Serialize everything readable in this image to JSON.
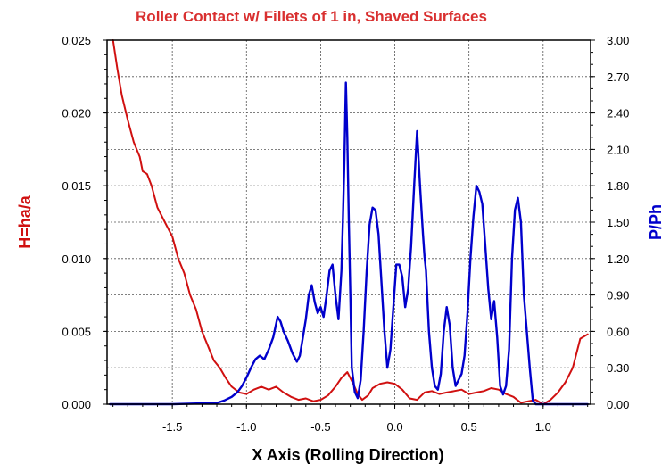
{
  "chart_data": {
    "type": "line",
    "title": "Roller Contact w/ Fillets of 1 in, Shaved Surfaces",
    "xlabel": "X Axis (Rolling Direction)",
    "ylabel_left": "H=ha/a",
    "ylabel_right": "P/Ph",
    "xlim": [
      -1.94,
      1.32
    ],
    "ylim_left": [
      0,
      0.025
    ],
    "ylim_right": [
      0,
      3.0
    ],
    "grid": true,
    "colors": {
      "left": "#d01010",
      "right": "#0000cc",
      "title": "#d93030"
    },
    "x_ticks": [
      {
        "v": -1.5,
        "label": "-1.5"
      },
      {
        "v": -1.0,
        "label": "-1.0"
      },
      {
        "v": -0.5,
        "label": "-0.5"
      },
      {
        "v": 0.0,
        "label": "0.0"
      },
      {
        "v": 0.5,
        "label": "0.5"
      },
      {
        "v": 1.0,
        "label": "1.0"
      }
    ],
    "y_left_ticks": [
      {
        "v": 0,
        "label": "0.000"
      },
      {
        "v": 0.005,
        "label": "0.005"
      },
      {
        "v": 0.01,
        "label": "0.010"
      },
      {
        "v": 0.015,
        "label": "0.015"
      },
      {
        "v": 0.02,
        "label": "0.020"
      },
      {
        "v": 0.025,
        "label": "0.025"
      }
    ],
    "y_right_ticks": [
      {
        "v": 0,
        "label": "0.00"
      },
      {
        "v": 0.3,
        "label": "0.30"
      },
      {
        "v": 0.6,
        "label": "0.60"
      },
      {
        "v": 0.9,
        "label": "0.90"
      },
      {
        "v": 1.2,
        "label": "1.20"
      },
      {
        "v": 1.5,
        "label": "1.50"
      },
      {
        "v": 1.8,
        "label": "1.80"
      },
      {
        "v": 2.1,
        "label": "2.10"
      },
      {
        "v": 2.4,
        "label": "2.40"
      },
      {
        "v": 2.7,
        "label": "2.70"
      },
      {
        "v": 3.0,
        "label": "3.00"
      }
    ],
    "series": [
      {
        "axis": "left",
        "color": "#d01010",
        "x": [
          -1.9,
          -1.87,
          -1.84,
          -1.8,
          -1.76,
          -1.72,
          -1.7,
          -1.67,
          -1.64,
          -1.6,
          -1.55,
          -1.5,
          -1.46,
          -1.42,
          -1.38,
          -1.34,
          -1.3,
          -1.26,
          -1.22,
          -1.18,
          -1.14,
          -1.1,
          -1.05,
          -1.0,
          -0.95,
          -0.9,
          -0.85,
          -0.8,
          -0.75,
          -0.7,
          -0.65,
          -0.6,
          -0.55,
          -0.5,
          -0.45,
          -0.4,
          -0.36,
          -0.32,
          -0.28,
          -0.25,
          -0.22,
          -0.18,
          -0.15,
          -0.1,
          -0.05,
          0.0,
          0.05,
          0.1,
          0.15,
          0.2,
          0.25,
          0.3,
          0.35,
          0.4,
          0.45,
          0.5,
          0.55,
          0.6,
          0.65,
          0.7,
          0.75,
          0.8,
          0.85,
          0.9,
          0.95,
          1.0,
          1.05,
          1.1,
          1.15,
          1.2,
          1.25,
          1.3
        ],
        "values": [
          0.025,
          0.023,
          0.0212,
          0.0195,
          0.018,
          0.017,
          0.016,
          0.0158,
          0.015,
          0.0135,
          0.0125,
          0.0115,
          0.01,
          0.009,
          0.0075,
          0.0065,
          0.005,
          0.004,
          0.003,
          0.0025,
          0.0018,
          0.0012,
          0.0008,
          0.0007,
          0.001,
          0.0012,
          0.001,
          0.0012,
          0.0008,
          0.0005,
          0.0003,
          0.0004,
          0.0002,
          0.0003,
          0.0006,
          0.0012,
          0.0018,
          0.0022,
          0.0014,
          0.0007,
          0.0003,
          0.0006,
          0.0011,
          0.0014,
          0.0015,
          0.0014,
          0.001,
          0.0004,
          0.0003,
          0.0008,
          0.0009,
          0.0007,
          0.0008,
          0.0009,
          0.001,
          0.0007,
          0.0008,
          0.0009,
          0.0011,
          0.001,
          0.0007,
          0.0005,
          0.0001,
          0.0002,
          0.0003,
          0.0,
          0.0003,
          0.0008,
          0.0015,
          0.0025,
          0.0045,
          0.0048
        ]
      },
      {
        "axis": "right",
        "color": "#0000cc",
        "x": [
          -1.92,
          -1.5,
          -1.2,
          -1.15,
          -1.1,
          -1.06,
          -1.03,
          -1.0,
          -0.97,
          -0.94,
          -0.91,
          -0.88,
          -0.85,
          -0.82,
          -0.79,
          -0.77,
          -0.75,
          -0.72,
          -0.69,
          -0.66,
          -0.64,
          -0.62,
          -0.6,
          -0.58,
          -0.56,
          -0.54,
          -0.52,
          -0.5,
          -0.48,
          -0.46,
          -0.44,
          -0.42,
          -0.4,
          -0.38,
          -0.36,
          -0.35,
          -0.34,
          -0.33,
          -0.32,
          -0.31,
          -0.3,
          -0.29,
          -0.27,
          -0.25,
          -0.23,
          -0.21,
          -0.19,
          -0.17,
          -0.15,
          -0.13,
          -0.11,
          -0.09,
          -0.07,
          -0.05,
          -0.03,
          -0.01,
          0.01,
          0.03,
          0.05,
          0.07,
          0.09,
          0.11,
          0.13,
          0.15,
          0.17,
          0.19,
          0.2,
          0.21,
          0.23,
          0.25,
          0.27,
          0.29,
          0.31,
          0.33,
          0.35,
          0.37,
          0.39,
          0.41,
          0.43,
          0.45,
          0.47,
          0.49,
          0.51,
          0.53,
          0.55,
          0.57,
          0.59,
          0.61,
          0.63,
          0.65,
          0.67,
          0.69,
          0.71,
          0.73,
          0.75,
          0.77,
          0.79,
          0.81,
          0.83,
          0.85,
          0.87,
          0.89,
          0.91,
          0.93,
          0.95,
          0.97,
          0.99,
          1.01,
          1.05,
          1.1,
          1.3
        ],
        "values": [
          0.0,
          0.0,
          0.01,
          0.03,
          0.06,
          0.1,
          0.15,
          0.22,
          0.3,
          0.37,
          0.4,
          0.37,
          0.45,
          0.55,
          0.72,
          0.68,
          0.6,
          0.52,
          0.42,
          0.35,
          0.4,
          0.55,
          0.7,
          0.9,
          0.98,
          0.84,
          0.75,
          0.8,
          0.72,
          0.9,
          1.1,
          1.15,
          0.9,
          0.7,
          1.1,
          1.5,
          2.0,
          2.65,
          2.2,
          1.5,
          0.9,
          0.3,
          0.1,
          0.05,
          0.2,
          0.6,
          1.1,
          1.48,
          1.62,
          1.6,
          1.4,
          1.0,
          0.6,
          0.3,
          0.45,
          0.8,
          1.15,
          1.15,
          1.05,
          0.8,
          0.95,
          1.3,
          1.8,
          2.25,
          1.8,
          1.4,
          1.22,
          1.1,
          0.6,
          0.3,
          0.15,
          0.12,
          0.25,
          0.6,
          0.8,
          0.65,
          0.3,
          0.15,
          0.2,
          0.25,
          0.4,
          0.75,
          1.2,
          1.55,
          1.8,
          1.75,
          1.65,
          1.3,
          0.95,
          0.7,
          0.85,
          0.55,
          0.15,
          0.08,
          0.15,
          0.45,
          1.2,
          1.6,
          1.7,
          1.5,
          0.9,
          0.6,
          0.3,
          0.03,
          0.0,
          0.0,
          0.0,
          0.0,
          0.0,
          0.0,
          0.0
        ]
      }
    ]
  }
}
